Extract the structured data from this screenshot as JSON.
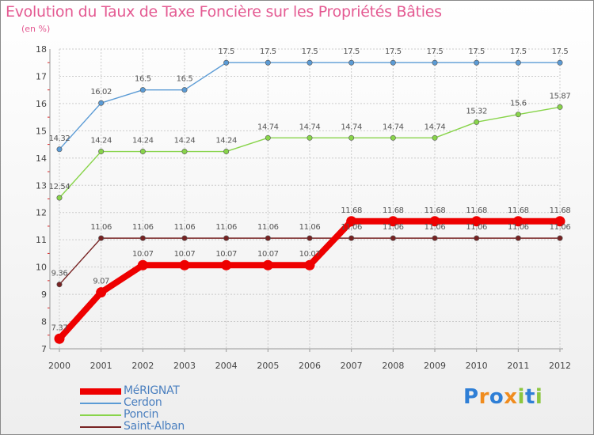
{
  "chart_data": {
    "type": "line",
    "title": "Evolution du Taux de Taxe Foncière sur les Propriétés Bâties",
    "ylabel": "(en %)",
    "xlabel": "",
    "ylim": [
      7,
      18
    ],
    "yticks": [
      7,
      8,
      9,
      10,
      11,
      12,
      13,
      14,
      15,
      16,
      17,
      18
    ],
    "x": [
      "2000",
      "2001",
      "2002",
      "2003",
      "2004",
      "2005",
      "2006",
      "2007",
      "2008",
      "2009",
      "2010",
      "2011",
      "2012"
    ],
    "grid": true,
    "legend_position": "bottom-left",
    "series": [
      {
        "name": "MéRIGNAT",
        "color": "#ee0000",
        "values": [
          7.37,
          9.07,
          10.07,
          10.07,
          10.07,
          10.07,
          10.07,
          11.68,
          11.68,
          11.68,
          11.68,
          11.68,
          11.68
        ],
        "labels": [
          "7.37",
          "9.07",
          "10.07",
          "10.07",
          "10.07",
          "10.07",
          "10.07",
          "11.68",
          "11.68",
          "11.68",
          "11.68",
          "11.68",
          "11.68"
        ]
      },
      {
        "name": "Cerdon",
        "color": "#5b9bd5",
        "values": [
          14.32,
          16.02,
          16.5,
          16.5,
          17.5,
          17.5,
          17.5,
          17.5,
          17.5,
          17.5,
          17.5,
          17.5,
          17.5
        ],
        "labels": [
          "14.32",
          "16.02",
          "16.5",
          "16.5",
          "17.5",
          "17.5",
          "17.5",
          "17.5",
          "17.5",
          "17.5",
          "17.5",
          "17.5",
          "17.5"
        ]
      },
      {
        "name": "Poncin",
        "color": "#88d44a",
        "values": [
          12.54,
          14.24,
          14.24,
          14.24,
          14.24,
          14.74,
          14.74,
          14.74,
          14.74,
          14.74,
          15.32,
          15.6,
          15.87
        ],
        "labels": [
          "12.54",
          "14.24",
          "14.24",
          "14.24",
          "14.24",
          "14.74",
          "14.74",
          "14.74",
          "14.74",
          "14.74",
          "15.32",
          "15.6",
          "15.87"
        ]
      },
      {
        "name": "Saint-Alban",
        "color": "#772222",
        "values": [
          9.36,
          11.06,
          11.06,
          11.06,
          11.06,
          11.06,
          11.06,
          11.06,
          11.06,
          11.06,
          11.06,
          11.06,
          11.06
        ],
        "labels": [
          "9.36",
          "11.06",
          "11.06",
          "11.06",
          "11.06",
          "11.06",
          "11.06",
          "11.06",
          "11.06",
          "11.06",
          "11.06",
          "11.06",
          "11.06"
        ]
      }
    ]
  },
  "logo": {
    "text": "Proxiti",
    "letters": [
      {
        "char": "P",
        "color": "#2f7fd6"
      },
      {
        "char": "r",
        "color": "#f08c1e"
      },
      {
        "char": "o",
        "color": "#2f7fd6"
      },
      {
        "char": "x",
        "color": "#f08c1e"
      },
      {
        "char": "i",
        "color": "#8cc63f"
      },
      {
        "char": "t",
        "color": "#2f7fd6"
      },
      {
        "char": "i",
        "color": "#8cc63f"
      }
    ]
  }
}
